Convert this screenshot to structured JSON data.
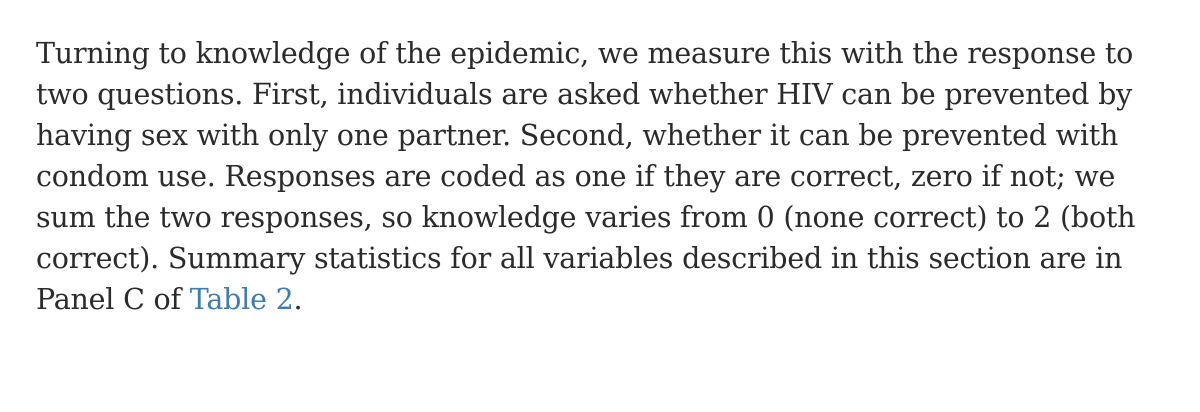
{
  "paragraph": {
    "lines": [
      "Turning to knowledge of the epidemic, we measure this with the response to",
      "two questions. First, individuals are asked whether HIV can be prevented by",
      "having sex with only one partner. Second, whether it can be prevented with",
      "condom use. Responses are coded as one if they are correct, zero if not; we",
      "sum the two responses, so knowledge varies from 0 (none correct) to 2 (both",
      "correct). Summary statistics for all variables described in this section are in"
    ],
    "last_line_prefix": "Panel C of ",
    "link_text": "Table 2",
    "last_line_suffix": ".",
    "link_color": "#3e7cb1",
    "text_color": "#2b2b2b"
  }
}
